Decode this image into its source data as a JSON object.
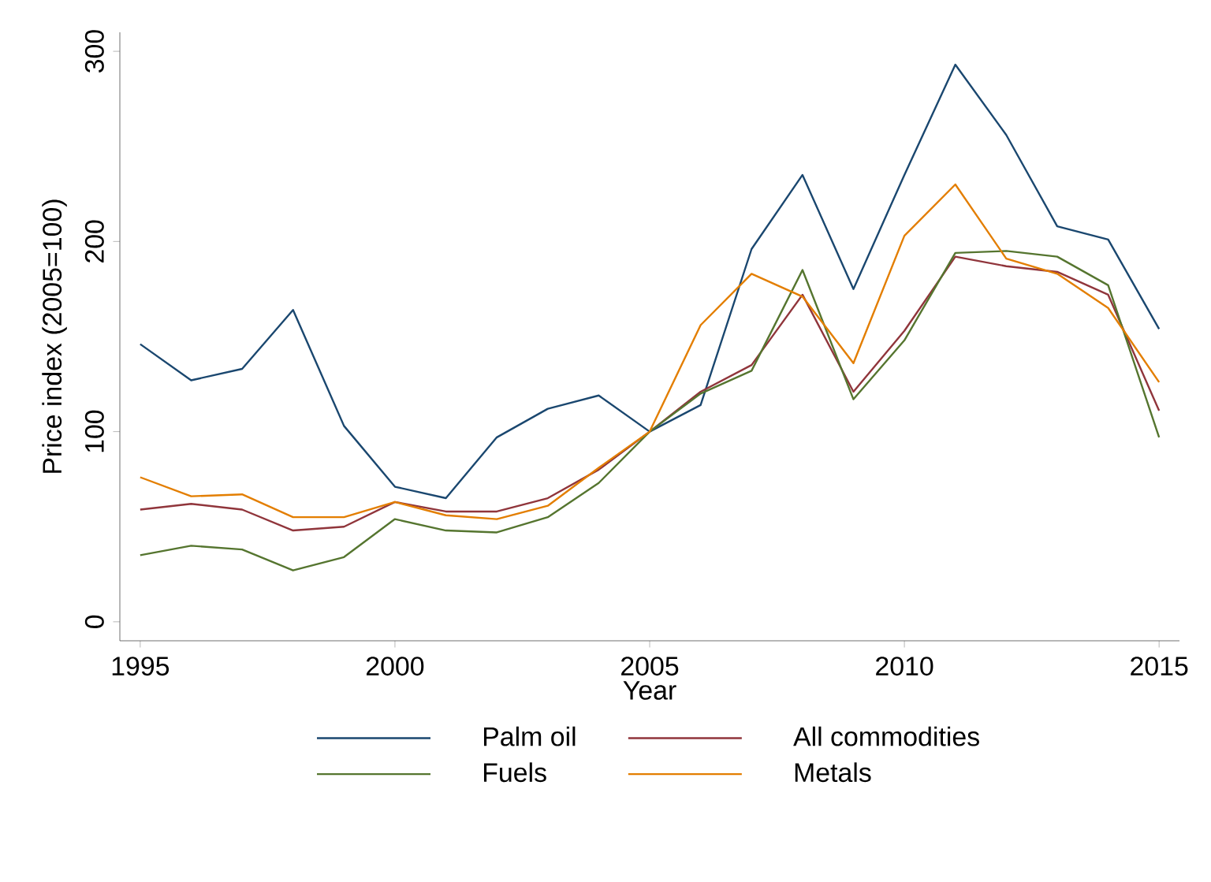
{
  "chart_data": {
    "type": "line",
    "xlabel": "Year",
    "ylabel": "Price index (2005=100)",
    "x": [
      1995,
      1996,
      1997,
      1998,
      1999,
      2000,
      2001,
      2002,
      2003,
      2004,
      2005,
      2006,
      2007,
      2008,
      2009,
      2010,
      2011,
      2012,
      2013,
      2014,
      2015
    ],
    "series": [
      {
        "name": "Palm oil",
        "color": "#1a476f",
        "values": [
          146,
          127,
          133,
          164,
          103,
          71,
          65,
          97,
          112,
          119,
          100,
          114,
          196,
          235,
          175,
          235,
          293,
          256,
          208,
          201,
          154
        ]
      },
      {
        "name": "All commodities",
        "color": "#90353b",
        "values": [
          59,
          62,
          59,
          48,
          50,
          63,
          58,
          58,
          65,
          80,
          100,
          121,
          135,
          172,
          121,
          153,
          192,
          187,
          184,
          172,
          111
        ]
      },
      {
        "name": "Fuels",
        "color": "#55752f",
        "values": [
          35,
          40,
          38,
          27,
          34,
          54,
          48,
          47,
          55,
          73,
          100,
          120,
          132,
          185,
          117,
          148,
          194,
          195,
          192,
          177,
          97
        ]
      },
      {
        "name": "Metals",
        "color": "#e37e00",
        "values": [
          76,
          66,
          67,
          55,
          55,
          63,
          56,
          54,
          61,
          81,
          100,
          156,
          183,
          171,
          136,
          203,
          230,
          191,
          183,
          165,
          126
        ]
      }
    ],
    "xlim": [
      1994.6,
      2015.4
    ],
    "ylim": [
      -10,
      310
    ],
    "xticks": [
      1995,
      2000,
      2005,
      2010,
      2015
    ],
    "yticks": [
      0,
      100,
      200,
      300
    ],
    "grid": false,
    "legend": "bottom",
    "line_style": "solid",
    "marker": "none"
  }
}
